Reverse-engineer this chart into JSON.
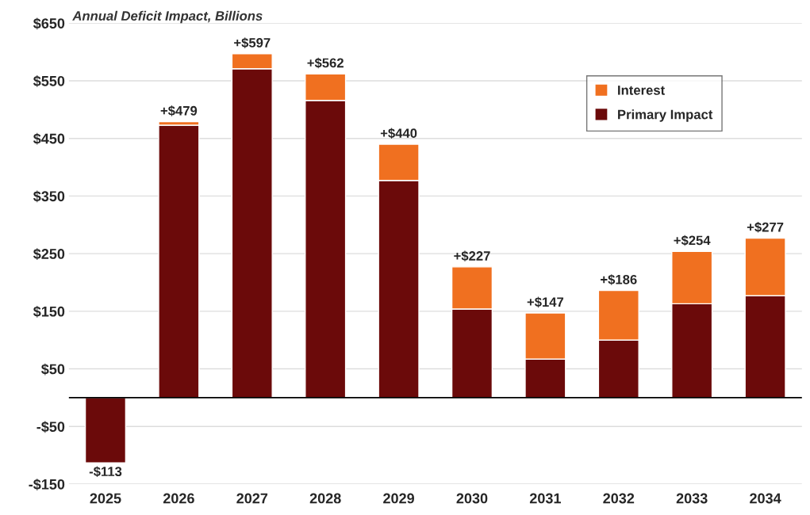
{
  "chart_data": {
    "type": "bar",
    "title": "Annual Deficit Impact, Billions",
    "stacked": true,
    "categories": [
      "2025",
      "2026",
      "2027",
      "2028",
      "2029",
      "2030",
      "2031",
      "2032",
      "2033",
      "2034"
    ],
    "series": [
      {
        "name": "Primary Impact",
        "color": "#6b0a0a",
        "values": [
          -113,
          473,
          571,
          516,
          377,
          154,
          67,
          100,
          163,
          177
        ]
      },
      {
        "name": "Interest",
        "color": "#f07020",
        "values": [
          null,
          6,
          26,
          46,
          63,
          73,
          80,
          86,
          91,
          100
        ]
      }
    ],
    "totals": [
      "-$113",
      "+$479",
      "+$597",
      "+$562",
      "+$440",
      "+$227",
      "+$147",
      "+$186",
      "+$254",
      "+$277"
    ],
    "ylim": [
      -150,
      650
    ],
    "yticks": [
      {
        "value": -150,
        "label": "-$150"
      },
      {
        "value": -50,
        "label": "-$50"
      },
      {
        "value": 50,
        "label": "$50"
      },
      {
        "value": 150,
        "label": "$150"
      },
      {
        "value": 250,
        "label": "$250"
      },
      {
        "value": 350,
        "label": "$350"
      },
      {
        "value": 450,
        "label": "$450"
      },
      {
        "value": 550,
        "label": "$550"
      },
      {
        "value": 650,
        "label": "$650"
      }
    ],
    "grid": "y",
    "legend": "top right"
  }
}
